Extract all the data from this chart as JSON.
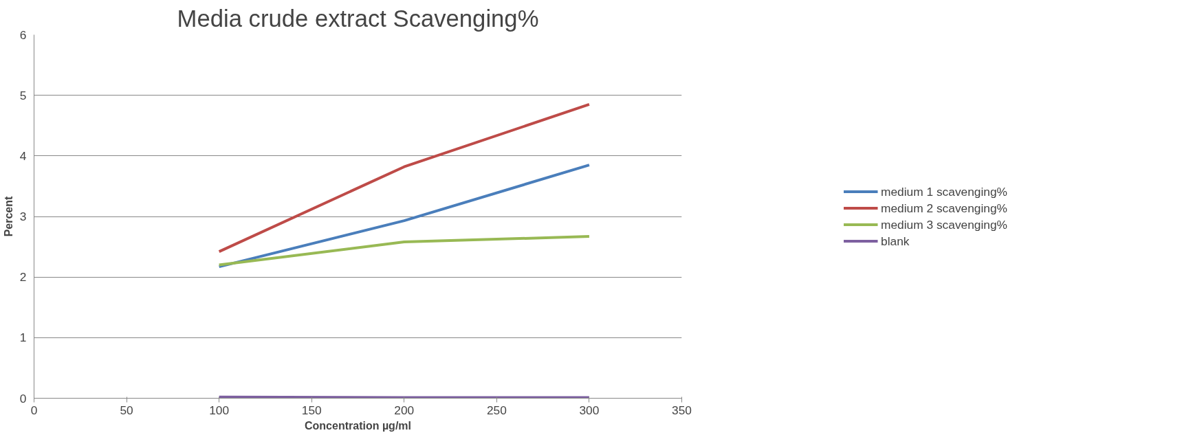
{
  "chart_data": {
    "type": "line",
    "title": "Media crude extract Scavenging%",
    "xlabel": "Concentration µg/ml",
    "ylabel": "Percent",
    "x": [
      100,
      200,
      300
    ],
    "series": [
      {
        "name": "medium 1 scavenging%",
        "color": "#4a7ebb",
        "values": [
          2.17,
          2.93,
          3.85
        ]
      },
      {
        "name": "medium 2 scavenging%",
        "color": "#be4b48",
        "values": [
          2.42,
          3.82,
          4.85
        ]
      },
      {
        "name": "medium 3 scavenging%",
        "color": "#98b954",
        "values": [
          2.2,
          2.58,
          2.67
        ]
      },
      {
        "name": "blank",
        "color": "#7d60a0",
        "values": [
          0.02,
          0.01,
          0.01
        ]
      }
    ],
    "xlim": [
      0,
      350
    ],
    "xticks": [
      0,
      50,
      100,
      150,
      200,
      250,
      300,
      350
    ],
    "ylim": [
      0,
      6
    ],
    "yticks": [
      0,
      1,
      2,
      3,
      4,
      5,
      6
    ],
    "grid": "y",
    "legend": "right",
    "marker": "none",
    "line_style": "solid"
  }
}
